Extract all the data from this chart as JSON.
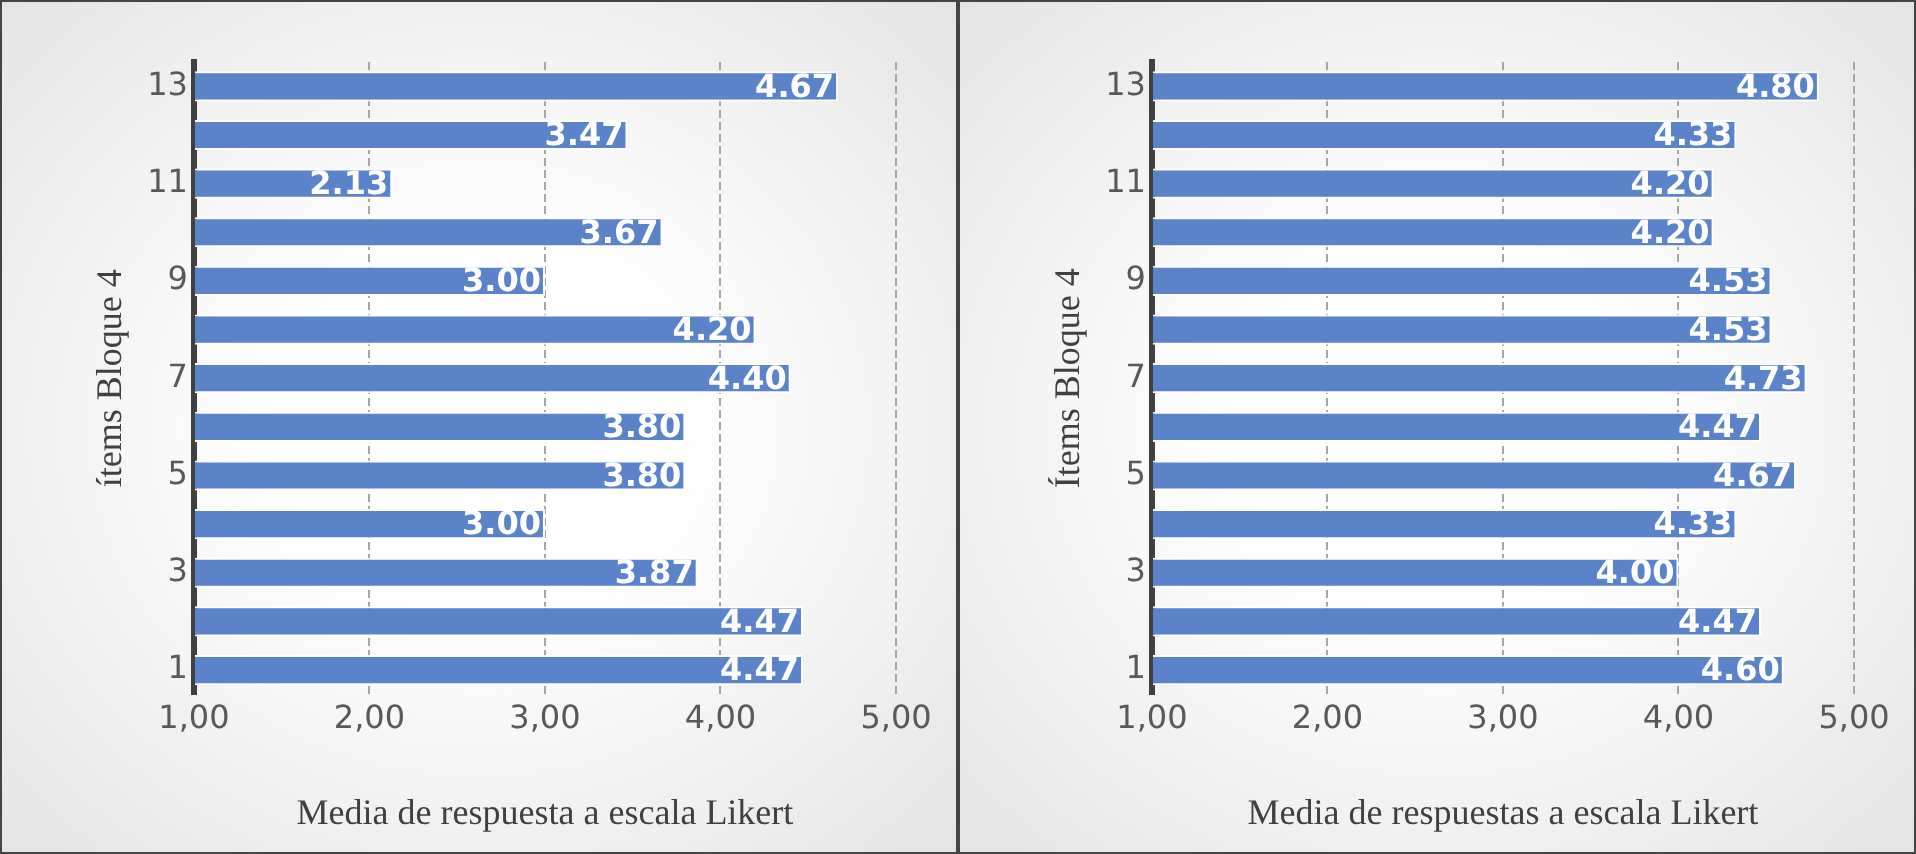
{
  "chart_data": [
    {
      "type": "bar",
      "orientation": "horizontal",
      "xlabel": "Media de respuesta a escala Likert",
      "ylabel": "ítems Bloque 4",
      "categories": [
        "13",
        null,
        "11",
        null,
        "9",
        null,
        "7",
        null,
        "5",
        null,
        "3",
        null,
        "1"
      ],
      "values": [
        4.67,
        3.47,
        2.13,
        3.67,
        3.0,
        4.2,
        4.4,
        3.8,
        3.8,
        3.0,
        3.87,
        4.47,
        4.47
      ],
      "value_labels": [
        "4.67",
        "3.47",
        "2.13",
        "3.67",
        "3.00",
        "4.20",
        "4.40",
        "3.80",
        "3.80",
        "3.00",
        "3.87",
        "4.47",
        "4.47"
      ],
      "color": "#5b83c9",
      "xlim": [
        1,
        5
      ],
      "xticks": [
        {
          "value": 1,
          "label": "1,00"
        },
        {
          "value": 2,
          "label": "2,00"
        },
        {
          "value": 3,
          "label": "3,00"
        },
        {
          "value": 4,
          "label": "4,00"
        },
        {
          "value": 5,
          "label": "5,00"
        }
      ],
      "grid": "x",
      "legend": false
    },
    {
      "type": "bar",
      "orientation": "horizontal",
      "xlabel": "Media de respuestas a escala Likert",
      "ylabel": "Ítems Bloque 4",
      "categories": [
        "13",
        null,
        "11",
        null,
        "9",
        null,
        "7",
        null,
        "5",
        null,
        "3",
        null,
        "1"
      ],
      "values": [
        4.8,
        4.33,
        4.2,
        4.2,
        4.53,
        4.53,
        4.73,
        4.47,
        4.67,
        4.33,
        4.0,
        4.47,
        4.6
      ],
      "value_labels": [
        "4.80",
        "4.33",
        "4.20",
        "4.20",
        "4.53",
        "4.53",
        "4.73",
        "4.47",
        "4.67",
        "4.33",
        "4.00",
        "4.47",
        "4.60"
      ],
      "color": "#5b83c9",
      "xlim": [
        1,
        5
      ],
      "xticks": [
        {
          "value": 1,
          "label": "1,00"
        },
        {
          "value": 2,
          "label": "2,00"
        },
        {
          "value": 3,
          "label": "3,00"
        },
        {
          "value": 4,
          "label": "4,00"
        },
        {
          "value": 5,
          "label": "5,00"
        }
      ],
      "grid": "x",
      "legend": false
    }
  ]
}
